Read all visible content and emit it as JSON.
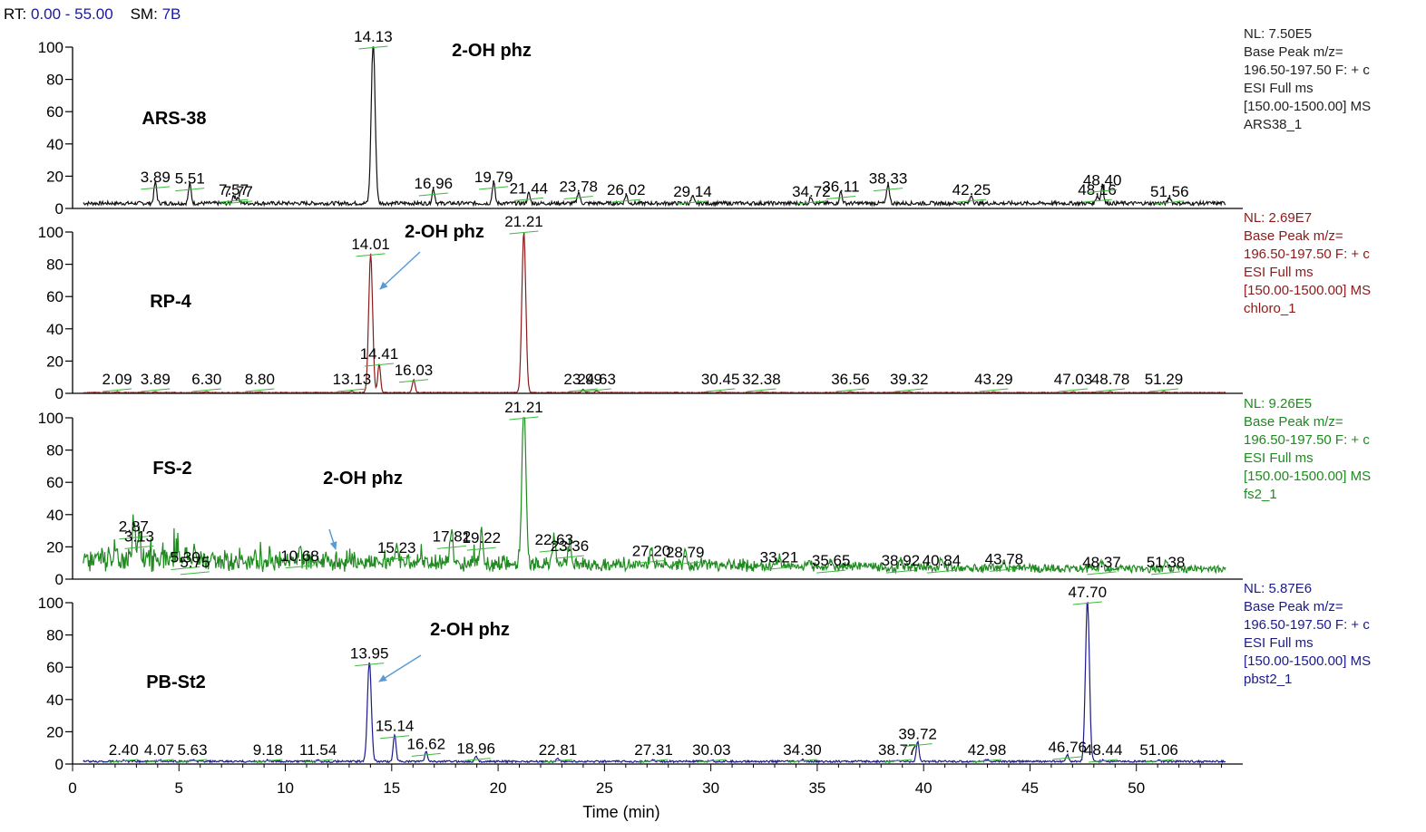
{
  "header": {
    "rt_label": "RT:",
    "rt_value": "0.00 - 55.00",
    "sm_label": "SM:",
    "sm_value": "7B"
  },
  "chart_data": {
    "type": "line",
    "xlabel": "Time (min)",
    "xlim": [
      0,
      55
    ],
    "x_ticks": [
      0,
      5,
      10,
      15,
      20,
      25,
      30,
      35,
      40,
      45,
      50
    ],
    "y_ticks": [
      0,
      20,
      40,
      60,
      80,
      100
    ],
    "ylim": [
      0,
      100
    ],
    "panels": [
      {
        "sample": "ARS-38",
        "color": "#111111",
        "annotation": "2-OH phz",
        "info": [
          "NL: 7.50E5",
          "Base Peak m/z=",
          "196.50-197.50 F: + c",
          "ESI Full ms",
          "[150.00-1500.00]  MS",
          "ARS38_1"
        ],
        "peaks": [
          {
            "x": 3.89,
            "y": 13
          },
          {
            "x": 5.51,
            "y": 12
          },
          {
            "x": 7.57,
            "y": 5
          },
          {
            "x": 7.77,
            "y": 4
          },
          {
            "x": 14.13,
            "y": 100
          },
          {
            "x": 16.96,
            "y": 9
          },
          {
            "x": 19.79,
            "y": 13
          },
          {
            "x": 21.44,
            "y": 6
          },
          {
            "x": 23.78,
            "y": 7
          },
          {
            "x": 26.02,
            "y": 5
          },
          {
            "x": 29.14,
            "y": 4
          },
          {
            "x": 34.72,
            "y": 4
          },
          {
            "x": 36.11,
            "y": 7
          },
          {
            "x": 38.33,
            "y": 12
          },
          {
            "x": 42.25,
            "y": 5
          },
          {
            "x": 48.16,
            "y": 5
          },
          {
            "x": 48.4,
            "y": 11
          },
          {
            "x": 51.56,
            "y": 4
          }
        ],
        "labels": [
          "3.89",
          "5.51",
          "7.57",
          "7.77",
          "14.13",
          "16.96",
          "19.79",
          "21.44",
          "23.78",
          "26.02",
          "29.14",
          "34.72",
          "36.11",
          "38.33",
          "42.25",
          "48.16",
          "48.40",
          "51.56"
        ],
        "baseline": 2
      },
      {
        "sample": "RP-4",
        "color": "#8b1a1a",
        "annotation": "2-OH phz",
        "info": [
          "NL: 2.69E7",
          "Base Peak m/z=",
          "196.50-197.50 F: + c",
          "ESI Full ms",
          "[150.00-1500.00]  MS",
          "chloro_1"
        ],
        "peaks": [
          {
            "x": 2.09,
            "y": 0.5
          },
          {
            "x": 3.89,
            "y": 0.5
          },
          {
            "x": 6.3,
            "y": 0.5
          },
          {
            "x": 8.8,
            "y": 0.5
          },
          {
            "x": 13.13,
            "y": 1
          },
          {
            "x": 14.01,
            "y": 86
          },
          {
            "x": 14.41,
            "y": 18
          },
          {
            "x": 16.03,
            "y": 8
          },
          {
            "x": 21.21,
            "y": 100
          },
          {
            "x": 23.99,
            "y": 2
          },
          {
            "x": 24.63,
            "y": 1
          },
          {
            "x": 30.45,
            "y": 0.5
          },
          {
            "x": 32.38,
            "y": 0.5
          },
          {
            "x": 36.56,
            "y": 0.5
          },
          {
            "x": 39.32,
            "y": 0.5
          },
          {
            "x": 43.29,
            "y": 0.5
          },
          {
            "x": 47.03,
            "y": 0.5
          },
          {
            "x": 48.78,
            "y": 0.5
          },
          {
            "x": 51.29,
            "y": 0.5
          }
        ],
        "labels": [
          "2.09",
          "3.89",
          "6.30",
          "8.80",
          "13.13",
          "14.01",
          "14.41",
          "16.03",
          "21.21",
          "23.99",
          "24.63",
          "30.45",
          "32.38",
          "36.56",
          "39.32",
          "43.29",
          "47.03",
          "48.78",
          "51.29"
        ],
        "baseline": 0.3
      },
      {
        "sample": "FS-2",
        "color": "#1f8a1f",
        "annotation": "2-OH phz",
        "info": [
          "NL: 9.26E5",
          "Base Peak m/z=",
          "196.50-197.50 F: + c",
          "ESI Full ms",
          "[150.00-1500.00]  MS",
          "fs2_1"
        ],
        "peaks": [
          {
            "x": 2.87,
            "y": 26
          },
          {
            "x": 3.13,
            "y": 20
          },
          {
            "x": 5.3,
            "y": 7
          },
          {
            "x": 5.75,
            "y": 4
          },
          {
            "x": 10.68,
            "y": 8
          },
          {
            "x": 15.23,
            "y": 13
          },
          {
            "x": 17.82,
            "y": 20
          },
          {
            "x": 19.22,
            "y": 19
          },
          {
            "x": 21.21,
            "y": 100
          },
          {
            "x": 22.63,
            "y": 18
          },
          {
            "x": 23.36,
            "y": 14
          },
          {
            "x": 27.2,
            "y": 11
          },
          {
            "x": 28.79,
            "y": 10
          },
          {
            "x": 33.21,
            "y": 7
          },
          {
            "x": 35.65,
            "y": 5
          },
          {
            "x": 38.92,
            "y": 5
          },
          {
            "x": 40.84,
            "y": 5
          },
          {
            "x": 43.78,
            "y": 6
          },
          {
            "x": 48.37,
            "y": 4
          },
          {
            "x": 51.38,
            "y": 4
          }
        ],
        "labels": [
          "2.87",
          "3.13",
          "5.30",
          "5.75",
          "10.68",
          "15.23",
          "17.82",
          "19.22",
          "21.21",
          "22.63",
          "23.36",
          "27.20",
          "28.79",
          "33.21",
          "35.65",
          "38.92",
          "40.84",
          "43.78",
          "48.37",
          "51.38"
        ],
        "baseline": 4
      },
      {
        "sample": "PB-St2",
        "color": "#1a1a8c",
        "annotation": "2-OH phz",
        "info": [
          "NL: 5.87E6",
          "Base Peak m/z=",
          "196.50-197.50 F: + c",
          "ESI Full ms",
          "[150.00-1500.00]  MS",
          "pbst2_1"
        ],
        "peaks": [
          {
            "x": 2.4,
            "y": 1
          },
          {
            "x": 4.07,
            "y": 1
          },
          {
            "x": 5.63,
            "y": 1
          },
          {
            "x": 9.18,
            "y": 1
          },
          {
            "x": 11.54,
            "y": 1
          },
          {
            "x": 13.95,
            "y": 62
          },
          {
            "x": 15.14,
            "y": 17
          },
          {
            "x": 16.62,
            "y": 6
          },
          {
            "x": 18.96,
            "y": 3
          },
          {
            "x": 22.81,
            "y": 2
          },
          {
            "x": 27.31,
            "y": 1
          },
          {
            "x": 30.03,
            "y": 1
          },
          {
            "x": 34.3,
            "y": 1
          },
          {
            "x": 38.77,
            "y": 1
          },
          {
            "x": 39.72,
            "y": 12
          },
          {
            "x": 42.98,
            "y": 1
          },
          {
            "x": 46.76,
            "y": 4
          },
          {
            "x": 47.7,
            "y": 100
          },
          {
            "x": 48.44,
            "y": 1
          },
          {
            "x": 51.06,
            "y": 1
          }
        ],
        "labels": [
          "2.40",
          "4.07",
          "5.63",
          "9.18",
          "11.54",
          "13.95",
          "15.14",
          "16.62",
          "18.96",
          "22.81",
          "27.31",
          "30.03",
          "34.30",
          "38.77",
          "39.72",
          "42.98",
          "46.76",
          "47.70",
          "48.44",
          "51.06"
        ],
        "baseline": 1
      }
    ]
  }
}
